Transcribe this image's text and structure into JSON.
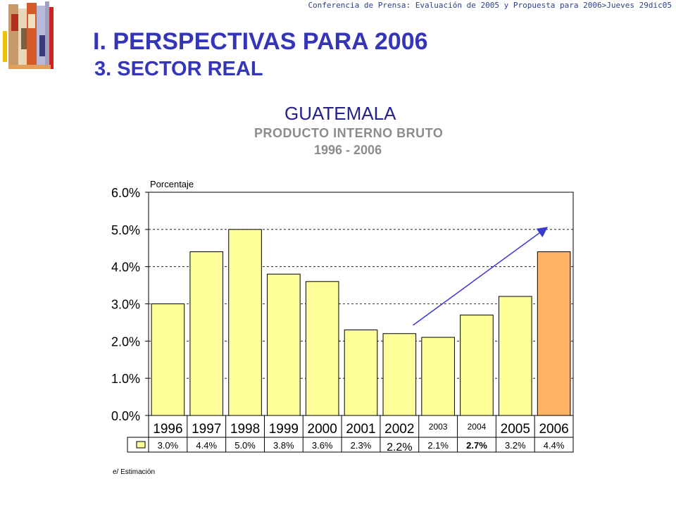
{
  "header": {
    "running_title": "Conferencia de Prensa: Evaluación de 2005 y Propuesta para 2006>Jueves 29dic05",
    "title": "I.  PERSPECTIVAS PARA 2006",
    "subtitle": "3.    SECTOR REAL"
  },
  "chart_data": {
    "type": "bar",
    "title": "GUATEMALA",
    "subtitle": "PRODUCTO INTERNO BRUTO",
    "period": "1996 - 2006",
    "ylabel": "Porcentaje",
    "xlabel": "",
    "categories": [
      "1996",
      "1997",
      "1998",
      "1999",
      "2000",
      "2001",
      "2002",
      "2003",
      "2004",
      "2005",
      "2006"
    ],
    "values": [
      3.0,
      4.4,
      5.0,
      3.8,
      3.6,
      2.3,
      2.2,
      2.1,
      2.7,
      3.2,
      4.4
    ],
    "value_labels": [
      "3.0%",
      "4.4%",
      "5.0%",
      "3.8%",
      "3.6%",
      "2.3%",
      "2.2%",
      "2.1%",
      "2.7%",
      "3.2%",
      "4.4%"
    ],
    "ylim": [
      0,
      6
    ],
    "yticks": [
      "0.0%",
      "1.0%",
      "2.0%",
      "3.0%",
      "4.0%",
      "5.0%",
      "6.0%"
    ],
    "ytick_values": [
      0,
      1,
      2,
      3,
      4,
      5,
      6
    ],
    "grid": "horizontal dashed",
    "data_table": true,
    "bar_color": "#ffff99",
    "highlight_color": "#ffb366",
    "highlight_category": "2006",
    "trend_arrow_color": "#3a3ad0",
    "trend_arrow_from": {
      "x": "2003",
      "y": 2.5
    },
    "trend_arrow_to": {
      "x": "2006",
      "y": 5.0
    }
  },
  "footnote": "e/ Estimación"
}
